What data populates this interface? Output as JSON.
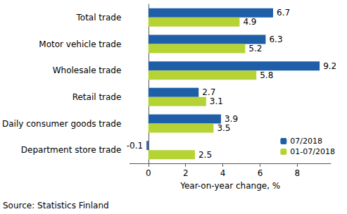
{
  "chart_data": {
    "type": "bar",
    "orientation": "horizontal",
    "categories": [
      "Total trade",
      "Motor vehicle trade",
      "Wholesale trade",
      "Retail trade",
      "Daily consumer goods trade",
      "Department store trade"
    ],
    "series": [
      {
        "name": "07/2018",
        "color": "#1f5fa8",
        "values": [
          6.7,
          6.3,
          9.2,
          2.7,
          3.9,
          -0.1
        ]
      },
      {
        "name": "01-07/2018",
        "color": "#b5d334",
        "values": [
          4.9,
          5.2,
          5.8,
          3.1,
          3.5,
          2.5
        ]
      }
    ],
    "x_label": "Year-on-year change, %",
    "source": "Source: Statistics Finland",
    "xlim": [
      -1,
      9.8
    ],
    "xticks": [
      0,
      2,
      4,
      6,
      8
    ],
    "grid": false,
    "legend": "lower right",
    "data_labels": true
  }
}
